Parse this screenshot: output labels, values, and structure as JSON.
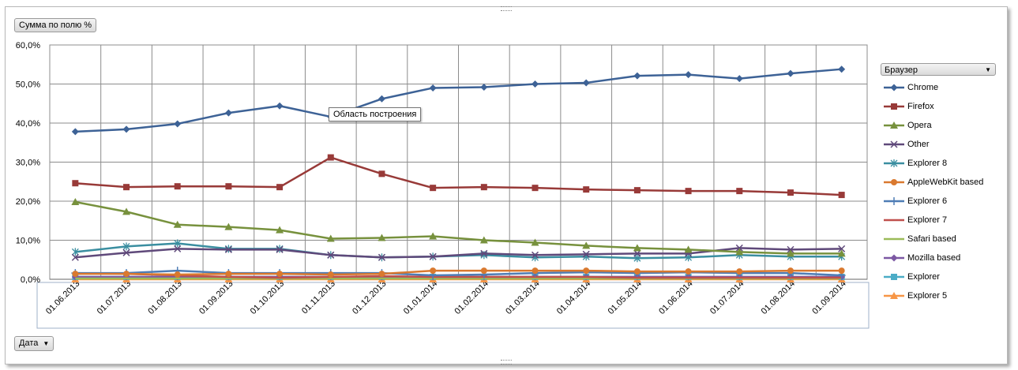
{
  "field_buttons": {
    "values_label": "Сумма по полю %",
    "axis_field_label": "Дата",
    "legend_field_label": "Браузер"
  },
  "tooltip": "Область построения",
  "icons": {
    "dropdown": "chevron-down-icon"
  },
  "chart_data": {
    "type": "line",
    "title": "",
    "xlabel": "",
    "ylabel": "",
    "ylim": [
      0,
      60
    ],
    "yticks": [
      "0,0%",
      "10,0%",
      "20,0%",
      "30,0%",
      "40,0%",
      "50,0%",
      "60,0%"
    ],
    "grid": true,
    "legend_position": "right",
    "categories": [
      "01.06.2013",
      "01.07.2013",
      "01.08.2013",
      "01.09.2013",
      "01.10.2013",
      "01.11.2013",
      "01.12.2013",
      "01.01.2014",
      "01.02.2014",
      "01.03.2014",
      "01.04.2014",
      "01.05.2014",
      "01.06.2014",
      "01.07.2014",
      "01.08.2014",
      "01.09.2014"
    ],
    "series": [
      {
        "name": "Chrome",
        "color": "#3d6296",
        "marker": "diamond",
        "values": [
          37.8,
          38.4,
          39.8,
          42.6,
          44.4,
          41.6,
          46.2,
          49.0,
          49.2,
          50.0,
          50.3,
          52.1,
          52.4,
          51.4,
          52.7,
          53.8
        ]
      },
      {
        "name": "Firefox",
        "color": "#983a38",
        "marker": "square",
        "values": [
          24.6,
          23.6,
          23.8,
          23.8,
          23.6,
          31.2,
          27.0,
          23.4,
          23.6,
          23.4,
          23.0,
          22.8,
          22.6,
          22.6,
          22.2,
          21.6
        ]
      },
      {
        "name": "Opera",
        "color": "#77913d",
        "marker": "triangle",
        "values": [
          19.8,
          17.3,
          14.0,
          13.4,
          12.6,
          10.4,
          10.6,
          11.0,
          10.0,
          9.4,
          8.6,
          8.0,
          7.6,
          7.0,
          6.6,
          6.6
        ]
      },
      {
        "name": "Other",
        "color": "#5f497a",
        "marker": "x",
        "values": [
          5.6,
          6.8,
          7.8,
          7.6,
          7.6,
          6.2,
          5.6,
          5.8,
          6.6,
          6.2,
          6.4,
          6.6,
          6.6,
          8.0,
          7.6,
          7.8
        ]
      },
      {
        "name": "Explorer 8",
        "color": "#3a8ea0",
        "marker": "star",
        "values": [
          7.0,
          8.4,
          9.2,
          7.8,
          7.8,
          6.2,
          5.6,
          5.8,
          6.2,
          5.6,
          5.8,
          5.4,
          5.6,
          6.2,
          5.8,
          5.8
        ]
      },
      {
        "name": "AppleWebKit based",
        "color": "#d9792f",
        "marker": "circle",
        "values": [
          1.4,
          1.4,
          1.2,
          1.4,
          1.4,
          1.2,
          1.4,
          2.2,
          2.2,
          2.2,
          2.2,
          2.0,
          2.0,
          2.0,
          2.2,
          2.2
        ]
      },
      {
        "name": "Explorer 6",
        "color": "#4f7db5",
        "marker": "plus",
        "values": [
          1.6,
          1.6,
          2.2,
          1.6,
          1.6,
          1.6,
          1.6,
          1.0,
          1.2,
          1.6,
          1.8,
          1.6,
          1.8,
          1.6,
          1.6,
          1.0
        ]
      },
      {
        "name": "Explorer 7",
        "color": "#c0504d",
        "marker": "none",
        "values": [
          1.6,
          1.4,
          1.0,
          0.6,
          0.4,
          0.6,
          0.8,
          0.6,
          0.6,
          0.6,
          0.6,
          0.4,
          0.4,
          0.4,
          0.4,
          0.4
        ]
      },
      {
        "name": "Safari based",
        "color": "#9bbb59",
        "marker": "none",
        "values": [
          0.2,
          0.2,
          0.2,
          0.2,
          0.2,
          0.2,
          0.2,
          0.2,
          0.2,
          0.2,
          0.2,
          0.2,
          0.2,
          0.2,
          0.2,
          0.2
        ]
      },
      {
        "name": "Mozilla based",
        "color": "#7c58a3",
        "marker": "diamond",
        "values": [
          0.6,
          0.6,
          0.6,
          0.6,
          0.6,
          0.6,
          0.6,
          0.6,
          0.6,
          0.6,
          0.6,
          0.6,
          0.6,
          0.6,
          0.6,
          0.6
        ]
      },
      {
        "name": "Explorer",
        "color": "#4bacc6",
        "marker": "square",
        "values": [
          0.6,
          0.6,
          0.6,
          0.6,
          0.6,
          0.6,
          0.6,
          0.6,
          0.6,
          0.6,
          0.6,
          0.6,
          0.6,
          0.6,
          0.6,
          0.6
        ]
      },
      {
        "name": "Explorer 5",
        "color": "#f79646",
        "marker": "triangle",
        "values": [
          0.0,
          0.0,
          0.0,
          0.0,
          0.0,
          0.0,
          0.0,
          0.0,
          0.0,
          0.0,
          0.0,
          0.0,
          0.0,
          0.0,
          0.0,
          0.0
        ]
      }
    ]
  }
}
